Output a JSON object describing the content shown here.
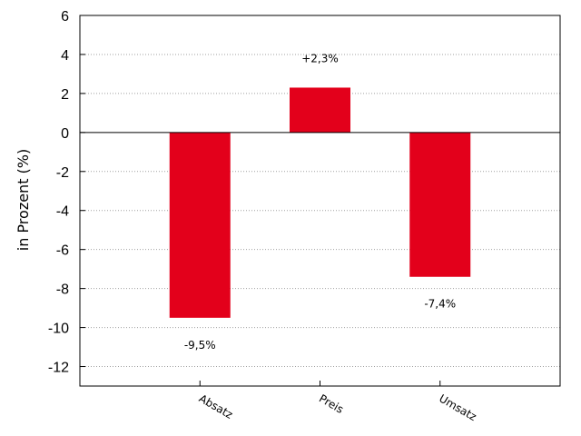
{
  "chart_data": {
    "type": "bar",
    "categories": [
      "Absatz",
      "Preis",
      "Umsatz"
    ],
    "values": [
      -9.5,
      2.3,
      -7.4
    ],
    "data_labels": [
      "-9,5%",
      "+2,3%",
      "-7,4%"
    ],
    "ylabel": "in Prozent (%)",
    "ylim": [
      -13,
      6
    ],
    "yticks": [
      6,
      4,
      2,
      0,
      -2,
      -4,
      -6,
      -8,
      -10,
      -12
    ],
    "grid": true,
    "bar_color": "#e3001b",
    "grid_color": "#a0a0a0",
    "zero_line_color": "#000000"
  }
}
